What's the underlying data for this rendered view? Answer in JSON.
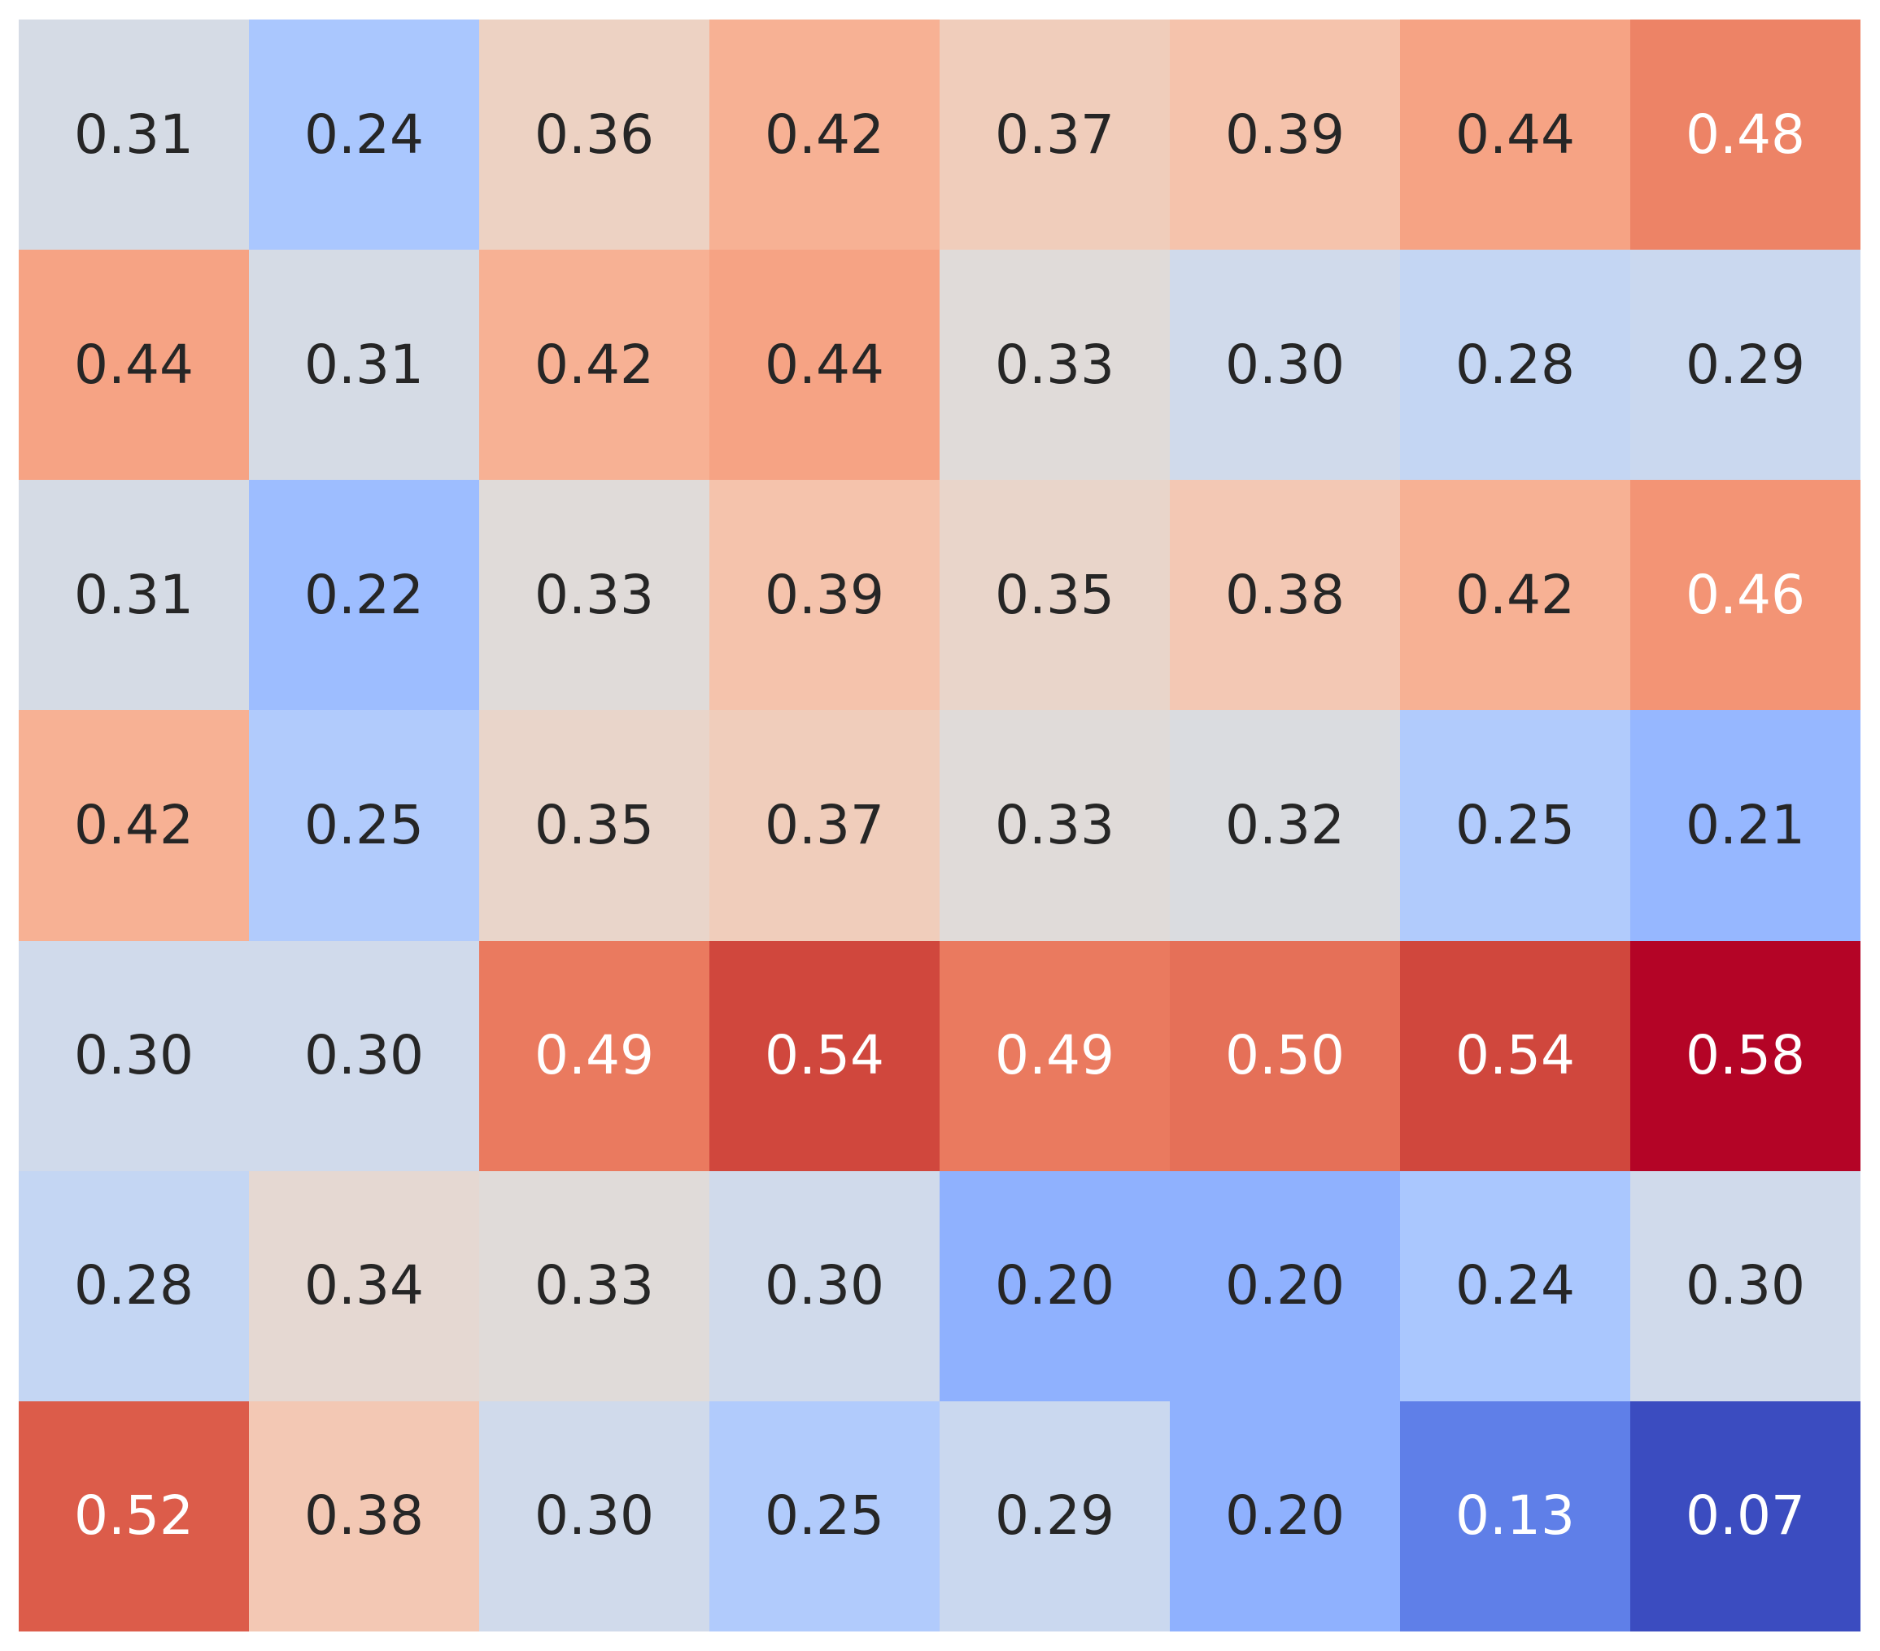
{
  "chart_data": {
    "type": "heatmap",
    "rows": 7,
    "cols": 8,
    "values": [
      [
        0.31,
        0.24,
        0.36,
        0.42,
        0.37,
        0.39,
        0.44,
        0.48
      ],
      [
        0.44,
        0.31,
        0.42,
        0.44,
        0.33,
        0.3,
        0.28,
        0.29
      ],
      [
        0.31,
        0.22,
        0.33,
        0.39,
        0.35,
        0.38,
        0.42,
        0.46
      ],
      [
        0.42,
        0.25,
        0.35,
        0.37,
        0.33,
        0.32,
        0.25,
        0.21
      ],
      [
        0.3,
        0.3,
        0.49,
        0.54,
        0.49,
        0.5,
        0.54,
        0.58
      ],
      [
        0.28,
        0.34,
        0.33,
        0.3,
        0.2,
        0.2,
        0.24,
        0.3
      ],
      [
        0.52,
        0.38,
        0.3,
        0.25,
        0.29,
        0.2,
        0.13,
        0.07
      ]
    ],
    "annotation_format": "0.2f",
    "colormap": "coolwarm",
    "vmin": 0.07,
    "vmax": 0.58,
    "title": "",
    "xlabel": "",
    "ylabel": "",
    "x_tick_labels": [],
    "y_tick_labels": [],
    "colorbar_visible": false,
    "grid": false,
    "colors": {
      "annotation_dark_text": "#262626",
      "annotation_light_text": "#ffffff",
      "page_background": "#ffffff",
      "min_cell": "#3b4cc0",
      "mid_cell": "#dddddd",
      "max_cell": "#b40426"
    }
  }
}
